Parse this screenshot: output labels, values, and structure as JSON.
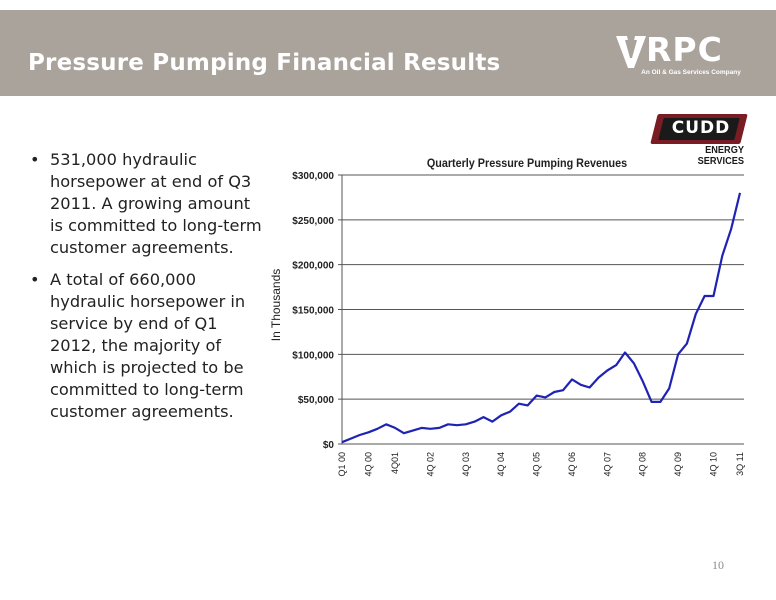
{
  "slide": {
    "title": "Pressure Pumping Financial Results",
    "page_number": "10"
  },
  "logos": {
    "rpc": {
      "word": "RPC",
      "tagline": "An Oil & Gas Services Company"
    },
    "cudd": {
      "word": "CUDD",
      "subtitle": "ENERGY SERVICES",
      "box_color": "#7a1c24"
    }
  },
  "bullets": [
    "531,000 hydraulic horsepower at end of Q3 2011.  A growing amount is committed to long-term customer agreements.",
    "A total of 660,000 hydraulic horsepower in service by end of Q1 2012, the majority of which is projected to be committed to long-term customer agreements."
  ],
  "colors": {
    "header_band": "#aaa39c",
    "line": "#1f23b4"
  },
  "chart_data": {
    "type": "line",
    "title": "Quarterly Pressure Pumping Revenues",
    "ylabel": "In Thousands",
    "xlabel": "",
    "ylim": [
      0,
      300000
    ],
    "y_ticks": [
      0,
      50000,
      100000,
      150000,
      200000,
      250000,
      300000
    ],
    "y_tick_labels": [
      "$0",
      "$50,000",
      "$100,000",
      "$150,000",
      "$200,000",
      "$250,000",
      "$300,000"
    ],
    "x_tick_labels": [
      {
        "index": 0,
        "label": "Q1 00"
      },
      {
        "index": 3,
        "label": "4Q 00"
      },
      {
        "index": 6,
        "label": "4Q01"
      },
      {
        "index": 10,
        "label": "4Q 02"
      },
      {
        "index": 14,
        "label": "4Q 03"
      },
      {
        "index": 18,
        "label": "4Q 04"
      },
      {
        "index": 22,
        "label": "4Q 05"
      },
      {
        "index": 26,
        "label": "4Q 06"
      },
      {
        "index": 30,
        "label": "4Q 07"
      },
      {
        "index": 34,
        "label": "4Q 08"
      },
      {
        "index": 38,
        "label": "4Q 09"
      },
      {
        "index": 42,
        "label": "4Q 10"
      },
      {
        "index": 45,
        "label": "3Q 11"
      }
    ],
    "grid": "horizontal",
    "legend": "none",
    "series": [
      {
        "values": [
          2000,
          6000,
          10000,
          13000,
          17000,
          22000,
          18000,
          12000,
          15000,
          18000,
          17000,
          18000,
          22000,
          21000,
          22000,
          25000,
          30000,
          25000,
          32000,
          36000,
          45000,
          43000,
          54000,
          52000,
          58000,
          60000,
          72000,
          66000,
          63000,
          74000,
          82000,
          88000,
          102000,
          90000,
          70000,
          47000,
          47000,
          62000,
          100000,
          112000,
          145000,
          165000,
          165000,
          210000,
          240000,
          280000
        ]
      }
    ]
  }
}
